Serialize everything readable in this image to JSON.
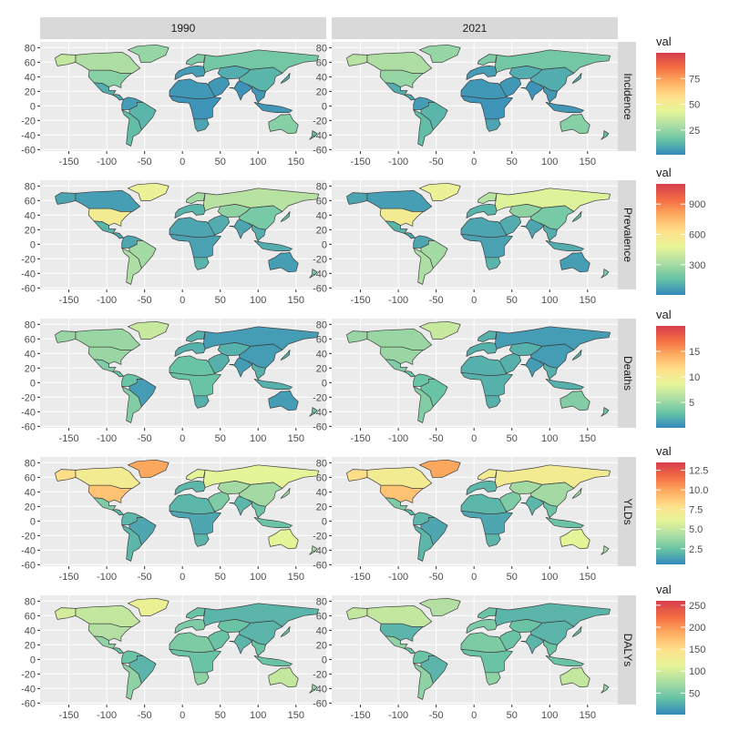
{
  "columns": [
    "1990",
    "2021"
  ],
  "rows": [
    {
      "label": "Incidence",
      "legend": {
        "title": "val",
        "min": 1,
        "max": 100,
        "ticks": [
          "25",
          "50",
          "75"
        ],
        "tick_values": [
          25,
          50,
          75
        ]
      },
      "regions": {
        "1990": {
          "north_america": 35,
          "alaska": 35,
          "canada": 30,
          "greenland": 25,
          "usa": 22,
          "mexico": 10,
          "central_america": 8,
          "south_america_n": 6,
          "brazil": 12,
          "south_america_s": 14,
          "europe_w": 6,
          "scandinavia": 20,
          "russia": 18,
          "central_asia": 10,
          "middle_east": 5,
          "africa_n": 5,
          "africa_sub": 4,
          "south_africa": 8,
          "india": 4,
          "china": 12,
          "se_asia": 5,
          "japan": 10,
          "australia": 22,
          "new_zealand": 14
        },
        "2021": {
          "north_america": 30,
          "alaska": 32,
          "canada": 30,
          "greenland": 25,
          "usa": 25,
          "mexico": 10,
          "central_america": 8,
          "south_america_n": 6,
          "brazil": 12,
          "south_america_s": 14,
          "europe_w": 6,
          "scandinavia": 20,
          "russia": 18,
          "central_asia": 10,
          "middle_east": 5,
          "africa_n": 5,
          "africa_sub": 4,
          "south_africa": 8,
          "india": 4,
          "china": 10,
          "se_asia": 5,
          "japan": 10,
          "australia": 22,
          "new_zealand": 14
        }
      }
    },
    {
      "label": "Prevalence",
      "legend": {
        "title": "val",
        "min": 1,
        "max": 1100,
        "ticks": [
          "300",
          "600",
          "900"
        ],
        "tick_values": [
          300,
          600,
          900
        ]
      },
      "regions": {
        "1990": {
          "north_america": 80,
          "alaska": 80,
          "canada": 60,
          "greenland": 500,
          "usa": 550,
          "mexico": 120,
          "central_america": 80,
          "south_america_n": 80,
          "brazil": 300,
          "south_america_s": 320,
          "europe_w": 120,
          "scandinavia": 300,
          "russia": 350,
          "central_asia": 250,
          "middle_east": 100,
          "africa_n": 80,
          "africa_sub": 70,
          "south_africa": 120,
          "india": 80,
          "china": 200,
          "se_asia": 100,
          "japan": 150,
          "australia": 60,
          "new_zealand": 200
        },
        "2021": {
          "north_america": 80,
          "alaska": 80,
          "canada": 60,
          "greenland": 500,
          "usa": 550,
          "mexico": 120,
          "central_america": 80,
          "south_america_n": 80,
          "brazil": 300,
          "south_america_s": 320,
          "europe_w": 120,
          "scandinavia": 350,
          "russia": 450,
          "central_asia": 250,
          "middle_east": 100,
          "africa_n": 80,
          "africa_sub": 70,
          "south_africa": 120,
          "india": 80,
          "china": 200,
          "se_asia": 100,
          "japan": 150,
          "australia": 60,
          "new_zealand": 200
        }
      }
    },
    {
      "label": "Deaths",
      "legend": {
        "title": "val",
        "min": 0,
        "max": 20,
        "ticks": [
          "5",
          "10",
          "15"
        ],
        "tick_values": [
          5,
          10,
          15
        ]
      },
      "regions": {
        "1990": {
          "north_america": 5,
          "alaska": 5,
          "canada": 5,
          "greenland": 7,
          "usa": 5,
          "mexico": 4,
          "central_america": 3,
          "south_america_n": 3,
          "brazil": 1,
          "south_america_s": 4,
          "europe_w": 2,
          "scandinavia": 2,
          "russia": 1,
          "central_asia": 2,
          "middle_east": 2,
          "africa_n": 3,
          "africa_sub": 3,
          "south_africa": 2,
          "india": 1,
          "china": 1,
          "se_asia": 2,
          "japan": 2,
          "australia": 1,
          "new_zealand": 3
        },
        "2021": {
          "north_america": 5,
          "alaska": 5,
          "canada": 5,
          "greenland": 7,
          "usa": 5,
          "mexico": 4,
          "central_america": 3,
          "south_america_n": 3,
          "brazil": 3,
          "south_america_s": 4,
          "europe_w": 2,
          "scandinavia": 2,
          "russia": 1,
          "central_asia": 2,
          "middle_east": 2,
          "africa_n": 2,
          "africa_sub": 2,
          "south_africa": 2,
          "india": 1,
          "china": 1,
          "se_asia": 2,
          "japan": 2,
          "australia": 4,
          "new_zealand": 3
        }
      }
    },
    {
      "label": "YLDs",
      "legend": {
        "title": "val",
        "min": 0.5,
        "max": 13.5,
        "ticks": [
          "2.5",
          "5.0",
          "7.5",
          "10.0",
          "12.5"
        ],
        "tick_values": [
          2.5,
          5,
          7.5,
          10,
          12.5
        ]
      },
      "regions": {
        "1990": {
          "north_america": 7,
          "alaska": 8,
          "canada": 7,
          "greenland": 10,
          "usa": 9,
          "mexico": 3,
          "central_america": 2,
          "south_america_n": 2,
          "brazil": 1.5,
          "south_america_s": 2,
          "europe_w": 2,
          "scandinavia": 6,
          "russia": 6,
          "central_asia": 4,
          "middle_east": 3,
          "africa_n": 2,
          "africa_sub": 1.5,
          "south_africa": 2,
          "india": 2,
          "china": 4,
          "se_asia": 2.5,
          "japan": 4,
          "australia": 6,
          "new_zealand": 4
        },
        "2021": {
          "north_america": 7,
          "alaska": 8,
          "canada": 7,
          "greenland": 10,
          "usa": 9,
          "mexico": 3,
          "central_america": 2,
          "south_america_n": 2,
          "brazil": 1.5,
          "south_america_s": 2,
          "europe_w": 2,
          "scandinavia": 7,
          "russia": 7,
          "central_asia": 4,
          "middle_east": 3,
          "africa_n": 2,
          "africa_sub": 1.5,
          "south_africa": 2,
          "india": 2,
          "china": 4,
          "se_asia": 2.5,
          "japan": 4,
          "australia": 6,
          "new_zealand": 4
        }
      }
    },
    {
      "label": "DALYs",
      "legend": {
        "title": "val",
        "min": 1,
        "max": 260,
        "ticks": [
          "50",
          "100",
          "150",
          "200",
          "250"
        ],
        "tick_values": [
          50,
          100,
          150,
          200,
          250
        ]
      },
      "regions": {
        "1990": {
          "north_america": 100,
          "alaska": 100,
          "canada": 90,
          "greenland": 120,
          "usa": 80,
          "mexico": 60,
          "central_america": 40,
          "south_america_n": 40,
          "brazil": 30,
          "south_america_s": 60,
          "europe_w": 50,
          "scandinavia": 40,
          "russia": 30,
          "central_asia": 40,
          "middle_east": 40,
          "africa_n": 50,
          "africa_sub": 40,
          "south_africa": 60,
          "india": 30,
          "china": 30,
          "se_asia": 40,
          "japan": 40,
          "australia": 90,
          "new_zealand": 60
        },
        "2021": {
          "north_america": 90,
          "alaska": 90,
          "canada": 90,
          "greenland": 80,
          "usa": 30,
          "mexico": 60,
          "central_america": 40,
          "south_america_n": 40,
          "brazil": 30,
          "south_america_s": 60,
          "europe_w": 50,
          "scandinavia": 40,
          "russia": 30,
          "central_asia": 40,
          "middle_east": 40,
          "africa_n": 50,
          "africa_sub": 40,
          "south_africa": 60,
          "india": 30,
          "china": 30,
          "se_asia": 40,
          "japan": 40,
          "australia": 90,
          "new_zealand": 60
        }
      }
    }
  ],
  "x_ticks": [
    "-150",
    "-100",
    "-50",
    "0",
    "50",
    "100",
    "150"
  ],
  "x_tick_values": [
    -150,
    -100,
    -50,
    0,
    50,
    100,
    150
  ],
  "y_ticks": [
    "80",
    "60",
    "40",
    "20",
    "0",
    "-20",
    "-40",
    "-60"
  ],
  "y_tick_values": [
    80,
    60,
    40,
    20,
    0,
    -20,
    -40,
    -60
  ],
  "palette": [
    "#3288bd",
    "#66c2a5",
    "#abdda4",
    "#e6f598",
    "#fee08b",
    "#fdae61",
    "#f46d43",
    "#d53e4f"
  ]
}
